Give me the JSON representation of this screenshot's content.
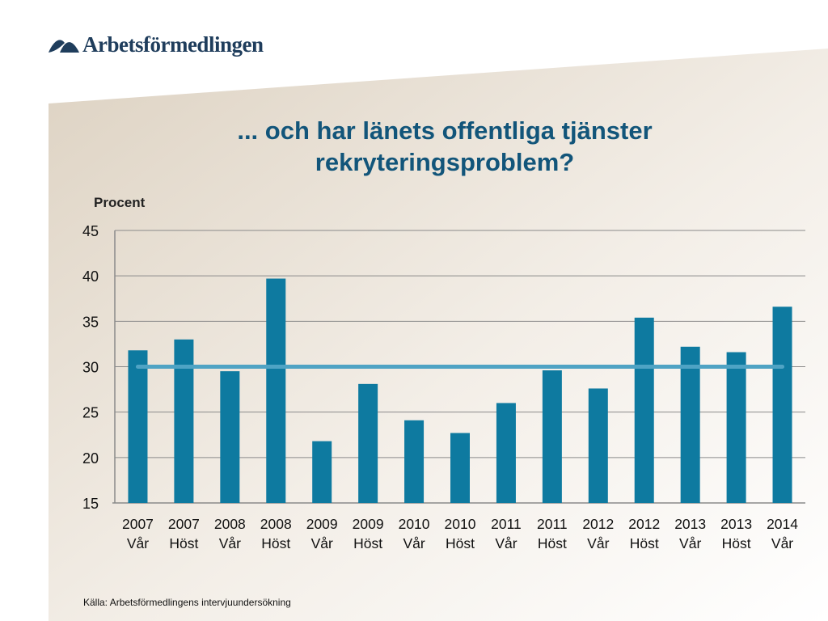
{
  "logo": {
    "text": "Arbetsförmedlingen",
    "icon": "arbetsformedlingen-logo-icon"
  },
  "title_line1": "... och har länets offentliga tjänster",
  "title_line2": "rekryteringsproblem?",
  "source": "Källa: Arbetsförmedlingens intervjuundersökning",
  "colors": {
    "bar": "#0e7aa0",
    "reference_line": "#4fa3c4",
    "title": "#12557a",
    "background_panel": "#e8dfd2"
  },
  "chart_data": {
    "type": "bar",
    "title": "... och har länets offentliga tjänster rekryteringsproblem?",
    "ylabel": "Procent",
    "xlabel": "",
    "ylim": [
      15,
      45
    ],
    "yticks": [
      15,
      20,
      25,
      30,
      35,
      40,
      45
    ],
    "grid": true,
    "categories": [
      [
        "2007",
        "Vår"
      ],
      [
        "2007",
        "Höst"
      ],
      [
        "2008",
        "Vår"
      ],
      [
        "2008",
        "Höst"
      ],
      [
        "2009",
        "Vår"
      ],
      [
        "2009",
        "Höst"
      ],
      [
        "2010",
        "Vår"
      ],
      [
        "2010",
        "Höst"
      ],
      [
        "2011",
        "Vår"
      ],
      [
        "2011",
        "Höst"
      ],
      [
        "2012",
        "Vår"
      ],
      [
        "2012",
        "Höst"
      ],
      [
        "2013",
        "Vår"
      ],
      [
        "2013",
        "Höst"
      ],
      [
        "2014",
        "Vår"
      ]
    ],
    "values": [
      31.8,
      33.0,
      29.5,
      39.7,
      21.8,
      28.1,
      24.1,
      22.7,
      26.0,
      29.6,
      27.6,
      35.4,
      32.2,
      31.6,
      36.6
    ],
    "reference_line": 30
  }
}
